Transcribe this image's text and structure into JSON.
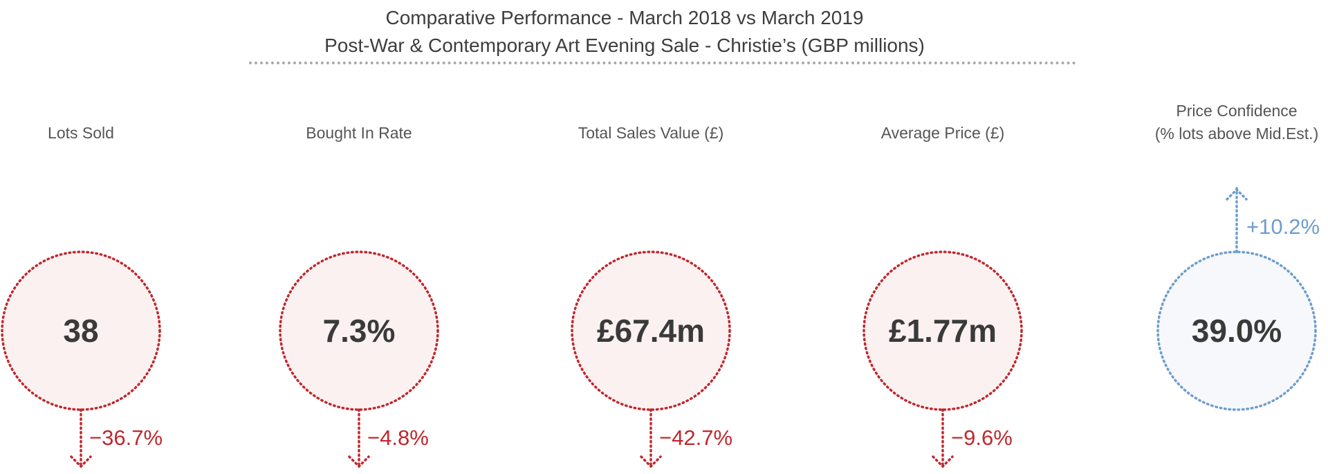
{
  "chart_data": {
    "type": "table",
    "title": "Comparative Performance - March 2018 vs March 2019",
    "subtitle": "Post-War & Contemporary Art Evening Sale - Christie’s (GBP millions)",
    "colors": {
      "down": "#c1272d",
      "down_fill": "#fbf1f1",
      "up": "#6d9dcd",
      "up_fill": "#f6f8fb",
      "value_text": "#3a3a3a",
      "label_text": "#555555"
    },
    "metrics": [
      {
        "label_lines": [
          "Lots Sold"
        ],
        "value": "38",
        "change_label": "−36.7%",
        "change": -36.7,
        "direction": "down"
      },
      {
        "label_lines": [
          "Bought In Rate"
        ],
        "value": "7.3%",
        "change_label": "−4.8%",
        "change": -4.8,
        "direction": "down"
      },
      {
        "label_lines": [
          "Total Sales Value (£)"
        ],
        "value": "£67.4m",
        "change_label": "−42.7%",
        "change": -42.7,
        "direction": "down"
      },
      {
        "label_lines": [
          "Average Price (£)"
        ],
        "value": "£1.77m",
        "change_label": "−9.6%",
        "change": -9.6,
        "direction": "down"
      },
      {
        "label_lines": [
          "Price Confidence",
          "(% lots above Mid.Est.)"
        ],
        "value": "39.0%",
        "change_label": "+10.2%",
        "change": 10.2,
        "direction": "up"
      }
    ]
  }
}
